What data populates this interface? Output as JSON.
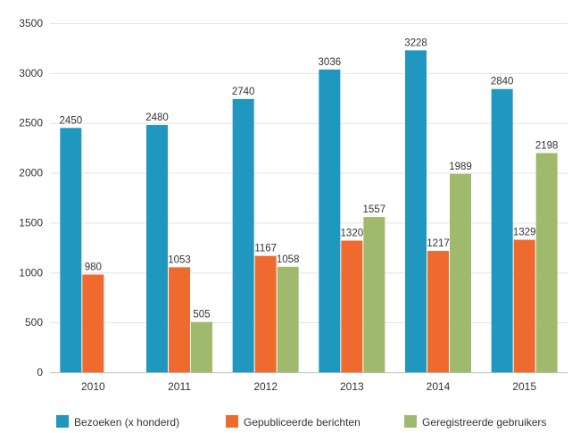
{
  "chart_data": {
    "type": "bar",
    "title": "",
    "xlabel": "",
    "ylabel": "",
    "categories": [
      "2010",
      "2011",
      "2012",
      "2013",
      "2014",
      "2015"
    ],
    "ylim": [
      0,
      3500
    ],
    "yticks": [
      0,
      500,
      1000,
      1500,
      2000,
      2500,
      3000,
      3500
    ],
    "grid": true,
    "legend_position": "bottom",
    "series": [
      {
        "name": "Bezoeken (x honderd)",
        "color": "#1f97be",
        "values": [
          2450,
          2480,
          2740,
          3036,
          3228,
          2840
        ]
      },
      {
        "name": "Gepubliceerde berichten",
        "color": "#ef6a2e",
        "values": [
          980,
          1053,
          1167,
          1320,
          1217,
          1329
        ]
      },
      {
        "name": "Geregistreerde gebruikers",
        "color": "#9fba6d",
        "values": [
          null,
          505,
          1058,
          1557,
          1989,
          2198
        ]
      }
    ]
  }
}
